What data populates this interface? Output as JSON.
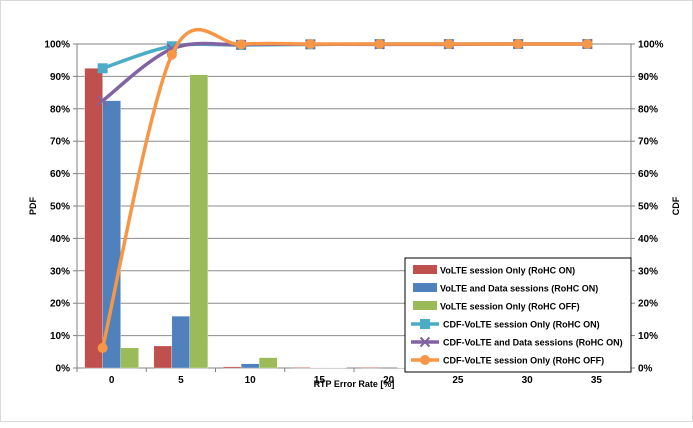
{
  "chart_data": {
    "type": "bar",
    "xlabel": "RTP Error Rate [%]",
    "ylabel": "PDF",
    "y2label": "CDF",
    "categories": [
      "0",
      "5",
      "10",
      "15",
      "20",
      "25",
      "30",
      "35"
    ],
    "ylim": [
      0,
      100
    ],
    "y2lim": [
      0,
      100
    ],
    "y_ticks": [
      "0%",
      "10%",
      "20%",
      "30%",
      "40%",
      "50%",
      "60%",
      "70%",
      "80%",
      "90%",
      "100%"
    ],
    "grid": true,
    "legend_position": "bottom-right",
    "bar_series": [
      {
        "name": "VoLTE session Only (RoHC ON)",
        "color": "#c0504d",
        "values": [
          92.5,
          6.8,
          0.4,
          0.2,
          0.2,
          0.0,
          0.1,
          0.0
        ]
      },
      {
        "name": "VoLTE and Data sessions (RoHC ON)",
        "color": "#4f81bd",
        "values": [
          82.5,
          16.0,
          1.3,
          0.1,
          0.0,
          0.0,
          0.1,
          0.0
        ]
      },
      {
        "name": "VoLTE session Only (RoHC OFF)",
        "color": "#9bbb59",
        "values": [
          6.2,
          90.5,
          3.2,
          0.1,
          0.1,
          0.0,
          0.0,
          0.0
        ]
      }
    ],
    "line_series": [
      {
        "name": "CDF-VoLTE session Only (RoHC ON)",
        "color": "#4bacc6",
        "marker": "square",
        "values": [
          92.5,
          99.3,
          99.7,
          99.9,
          100,
          100,
          100,
          100
        ]
      },
      {
        "name": "CDF-VoLTE and Data sessions (RoHC ON)",
        "color": "#8064a2",
        "marker": "x",
        "values": [
          82.5,
          98.5,
          99.8,
          99.9,
          99.9,
          99.9,
          100,
          100
        ]
      },
      {
        "name": "CDF-VoLTE session Only (RoHC OFF)",
        "color": "#f79646",
        "marker": "circle",
        "values": [
          6.2,
          96.7,
          99.9,
          100,
          100,
          100,
          100,
          100
        ]
      }
    ]
  }
}
